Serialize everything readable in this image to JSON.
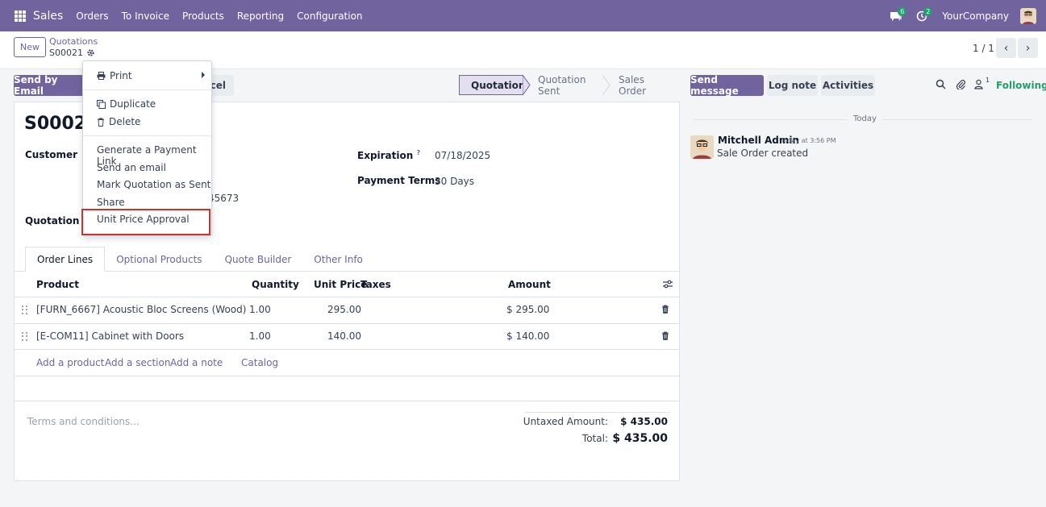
{
  "nav": {
    "app": "Sales",
    "menu": [
      "Orders",
      "To Invoice",
      "Products",
      "Reporting",
      "Configuration"
    ],
    "messages_badge": "6",
    "activities_badge": "2",
    "company": "YourCompany"
  },
  "control": {
    "new_label": "New",
    "breadcrumb_parent": "Quotations",
    "breadcrumb_current": "S00021",
    "pager": "1 / 1"
  },
  "actions": {
    "send_email": "Send by Email",
    "cancel_partial": "ncel"
  },
  "status": {
    "steps": [
      "Quotation",
      "Quotation Sent",
      "Sales Order"
    ],
    "active": "Quotation"
  },
  "form": {
    "order_name": "S00021",
    "customer_label": "Customer",
    "customer_partial": "45673",
    "quotation_template_label": "Quotation Te",
    "expiration_label": "Expiration",
    "expiration_help": "?",
    "expiration_value": "07/18/2025",
    "payment_terms_label": "Payment Terms",
    "payment_terms_value": "30 Days"
  },
  "tabs": [
    "Order Lines",
    "Optional Products",
    "Quote Builder",
    "Other Info"
  ],
  "table": {
    "headers": {
      "product": "Product",
      "quantity": "Quantity",
      "unit_price": "Unit Price",
      "taxes": "Taxes",
      "amount": "Amount"
    },
    "rows": [
      {
        "product": "[FURN_6667] Acoustic Bloc Screens (Wood)",
        "quantity": "1.00",
        "unit_price": "295.00",
        "amount": "$ 295.00"
      },
      {
        "product": "[E-COM11] Cabinet with Doors",
        "quantity": "1.00",
        "unit_price": "140.00",
        "amount": "$ 140.00"
      }
    ],
    "add_links": [
      "Add a product",
      "Add a section",
      "Add a note",
      "Catalog"
    ]
  },
  "footer": {
    "terms_placeholder": "Terms and conditions...",
    "untaxed_label": "Untaxed Amount:",
    "untaxed_value": "$ 435.00",
    "total_label": "Total:",
    "total_value": "$ 435.00"
  },
  "chatter": {
    "send_message": "Send message",
    "log_note": "Log note",
    "activities": "Activities",
    "followers_count": "1",
    "following": "Following",
    "date_sep": "Today",
    "author": "Mitchell Admin",
    "time": "Today at 3:56 PM",
    "body": "Sale Order created"
  },
  "dropdown": {
    "print": "Print",
    "duplicate": "Duplicate",
    "delete": "Delete",
    "items": [
      "Generate a Payment Link",
      "Send an email",
      "Mark Quotation as Sent",
      "Share",
      "Unit Price Approval"
    ]
  },
  "colors": {
    "brand": "#71639e",
    "success": "#22a06b",
    "highlight": "#d32f2f"
  }
}
